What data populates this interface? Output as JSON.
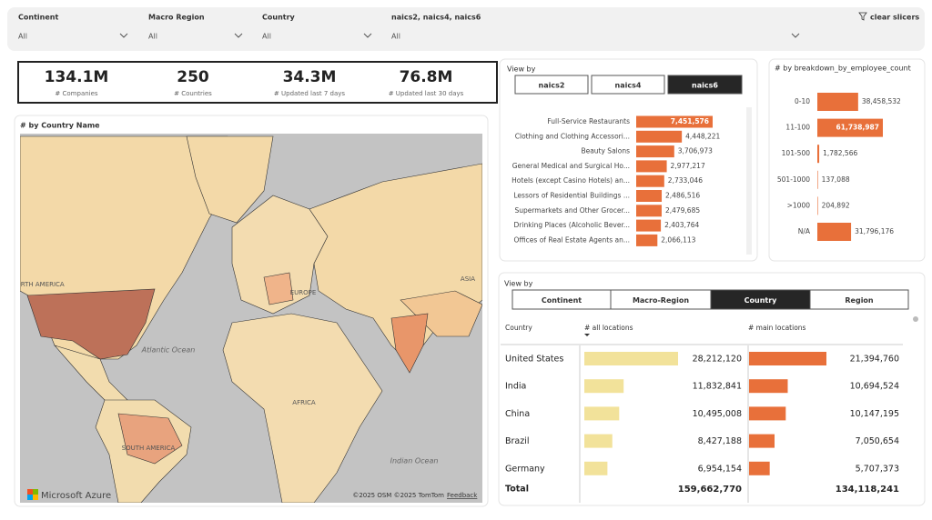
{
  "filters": {
    "items": [
      {
        "label": "Continent",
        "value": "All"
      },
      {
        "label": "Macro Region",
        "value": "All"
      },
      {
        "label": "Country",
        "value": "All"
      },
      {
        "label": "naics2, naics4, naics6",
        "value": "All"
      }
    ],
    "clear": "clear slicers"
  },
  "kpis": [
    {
      "value": "134.1M",
      "label": "# Companies"
    },
    {
      "value": "250",
      "label": "# Countries"
    },
    {
      "value": "34.3M",
      "label": "# Updated last 7 days"
    },
    {
      "value": "76.8M",
      "label": "# Updated last 30 days"
    }
  ],
  "map": {
    "title": "# by Country Name",
    "labels": [
      "NORTH AMERICA",
      "Atlantic Ocean",
      "EUROPE",
      "ASIA",
      "AFRICA",
      "SOUTH AMERICA",
      "Indian Ocean"
    ],
    "brand": "Microsoft Azure",
    "credits": "©2025 OSM ©2025 TomTom",
    "feedback": "Feedback"
  },
  "naics": {
    "title": "View by",
    "tabs": [
      "naics2",
      "naics4",
      "naics6"
    ],
    "active": 2,
    "categories": [
      "Full-Service Restaurants",
      "Clothing and Clothing Accessori...",
      "Beauty Salons",
      "General Medical and Surgical Ho...",
      "Hotels (except Casino Hotels) an...",
      "Lessors of Residential Buildings ...",
      "Supermarkets and Other Grocer...",
      "Drinking Places (Alcoholic Bever...",
      "Offices of Real Estate Agents an..."
    ],
    "values": [
      7451576,
      4448221,
      3706973,
      2977217,
      2733046,
      2486516,
      2479685,
      2403764,
      2066113
    ],
    "value_labels": [
      "7,451,576",
      "4,448,221",
      "3,706,973",
      "2,977,217",
      "2,733,046",
      "2,486,516",
      "2,479,685",
      "2,403,764",
      "2,066,113"
    ],
    "color": "#e8703a"
  },
  "employees": {
    "title": "# by breakdown_by_employee_count",
    "categories": [
      "0-10",
      "11-100",
      "101-500",
      "501-1000",
      ">1000",
      "N/A"
    ],
    "values": [
      38458532,
      61738987,
      1782566,
      137088,
      204892,
      31796176
    ],
    "value_labels": [
      "38,458,532",
      "61,738,987",
      "1,782,566",
      "137,088",
      "204,892",
      "31,796,176"
    ],
    "color": "#e8703a"
  },
  "countries": {
    "title": "View by",
    "tabs": [
      "Continent",
      "Macro-Region",
      "Country",
      "Region"
    ],
    "active": 2,
    "columns": [
      "Country",
      "# all locations",
      "# main locations"
    ],
    "rows": [
      {
        "name": "United States",
        "all": 28212120,
        "all_label": "28,212,120",
        "main": 21394760,
        "main_label": "21,394,760"
      },
      {
        "name": "India",
        "all": 11832841,
        "all_label": "11,832,841",
        "main": 10694524,
        "main_label": "10,694,524"
      },
      {
        "name": "China",
        "all": 10495008,
        "all_label": "10,495,008",
        "main": 10147195,
        "main_label": "10,147,195"
      },
      {
        "name": "Brazil",
        "all": 8427188,
        "all_label": "8,427,188",
        "main": 7050654,
        "main_label": "7,050,654"
      },
      {
        "name": "Germany",
        "all": 6954154,
        "all_label": "6,954,154",
        "main": 5707373,
        "main_label": "5,707,373"
      }
    ],
    "total": {
      "name": "Total",
      "all": 159662770,
      "all_label": "159,662,770",
      "main": 134118241,
      "main_label": "134,118,241"
    },
    "all_color": "#f2e29a",
    "main_color": "#e8703a"
  }
}
